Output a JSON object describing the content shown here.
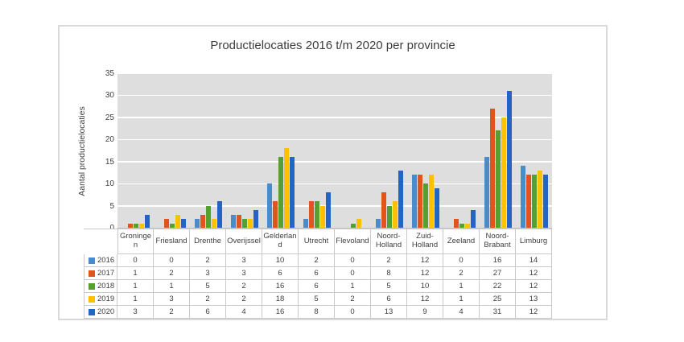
{
  "chart_data": {
    "type": "bar",
    "title": "Productielocaties 2016 t/m 2020 per provincie",
    "xlabel": "",
    "ylabel": "Aantal productielocaties",
    "ylim": [
      0,
      35
    ],
    "yticks": [
      0,
      5,
      10,
      15,
      20,
      25,
      30,
      35
    ],
    "grid": true,
    "grid_color": "#ffffff",
    "plot_bg": "#dedede",
    "legend_position": "table-left",
    "categories": [
      "Groningen",
      "Friesland",
      "Drenthe",
      "Overijssel",
      "Gelderland",
      "Utrecht",
      "Flevoland",
      "Noord-Holland",
      "Zuid-Holland",
      "Zeeland",
      "Noord-Brabant",
      "Limburg"
    ],
    "series": [
      {
        "name": "2016",
        "color": "#4a8ccb",
        "values": [
          0,
          0,
          2,
          3,
          10,
          2,
          0,
          2,
          12,
          0,
          16,
          14
        ]
      },
      {
        "name": "2017",
        "color": "#e0551c",
        "values": [
          1,
          2,
          3,
          3,
          6,
          6,
          0,
          8,
          12,
          2,
          27,
          12
        ]
      },
      {
        "name": "2018",
        "color": "#55a033",
        "values": [
          1,
          1,
          5,
          2,
          16,
          6,
          1,
          5,
          10,
          1,
          22,
          12
        ]
      },
      {
        "name": "2019",
        "color": "#ffc000",
        "values": [
          1,
          3,
          2,
          2,
          18,
          5,
          2,
          6,
          12,
          1,
          25,
          13
        ]
      },
      {
        "name": "2020",
        "color": "#2563c4",
        "values": [
          3,
          2,
          6,
          4,
          16,
          8,
          0,
          13,
          9,
          4,
          31,
          12
        ]
      }
    ]
  }
}
